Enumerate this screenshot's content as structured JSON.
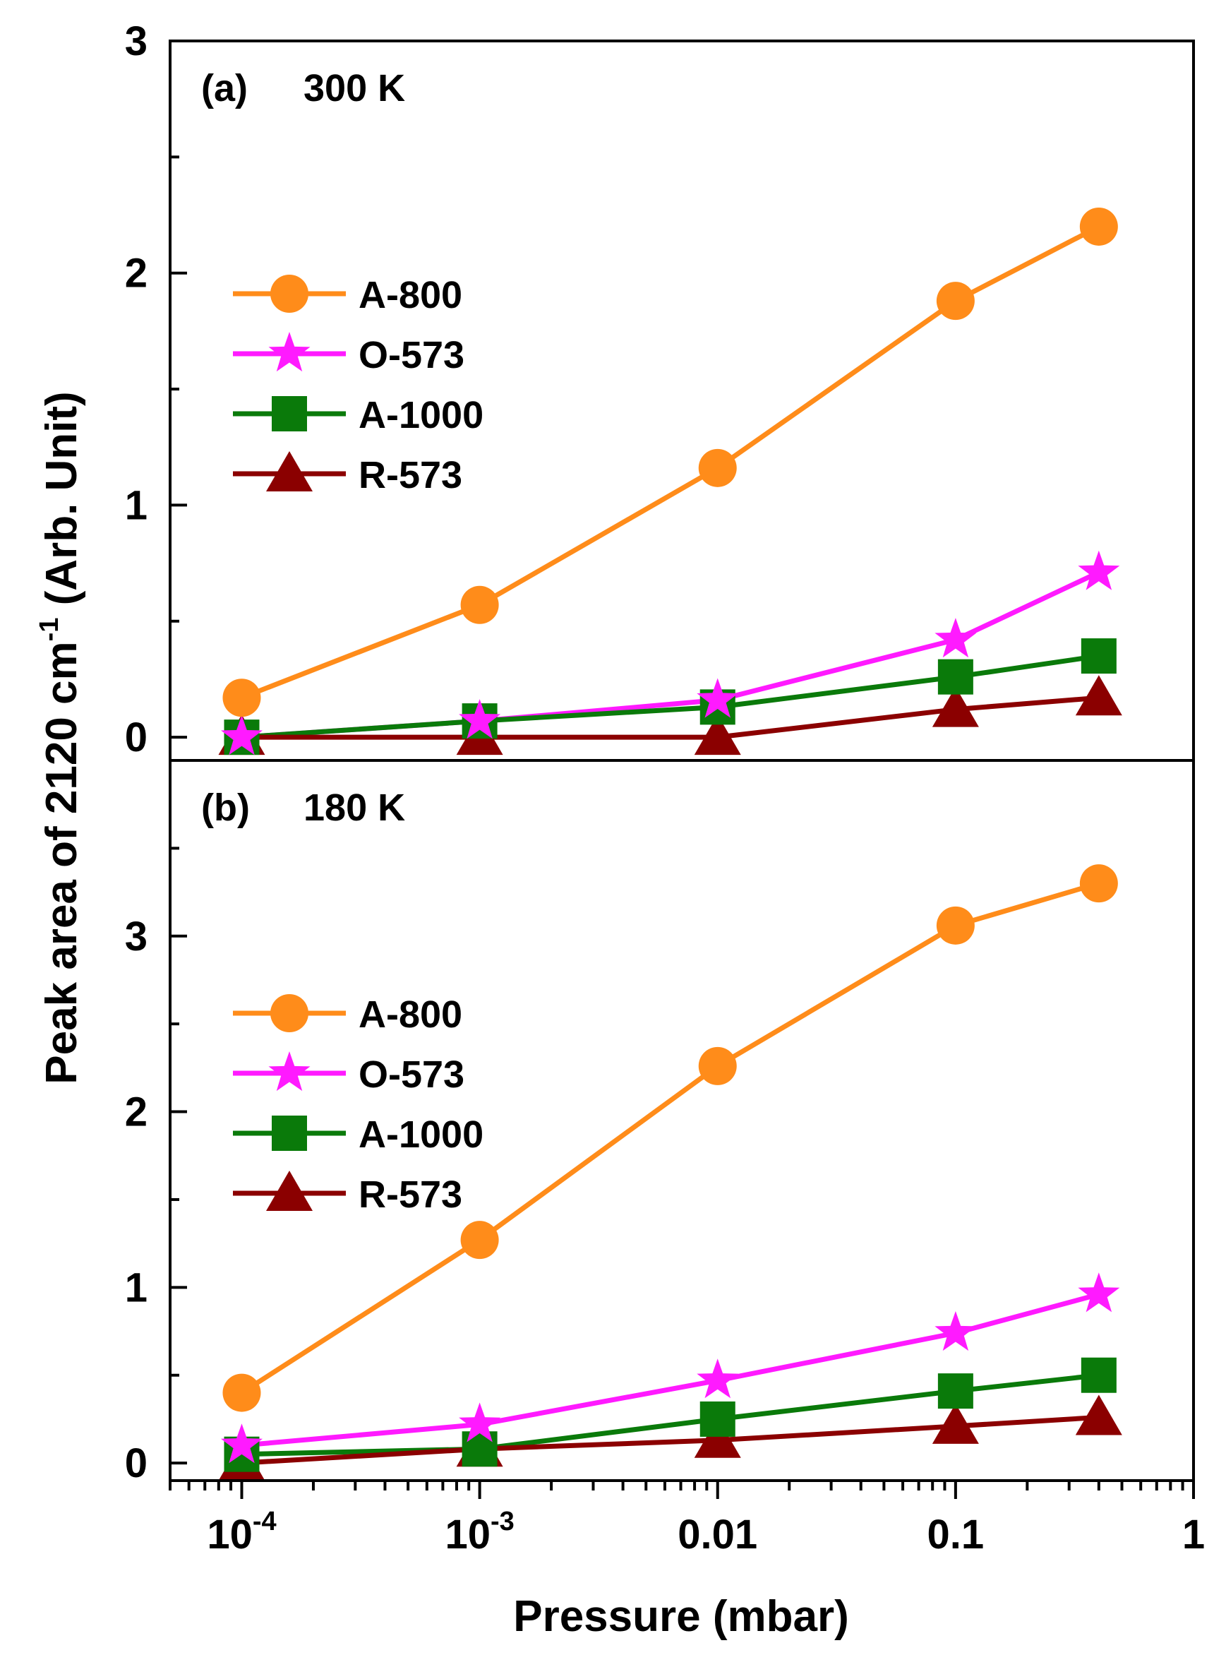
{
  "chart_data": [
    {
      "type": "line",
      "panel": "a",
      "panel_label": "(a)",
      "temperature_label": "300 K",
      "x_scale": "log",
      "xlim": [
        5e-05,
        1
      ],
      "ylim": [
        -0.1,
        3
      ],
      "yticks": [
        0,
        1,
        2,
        3
      ],
      "ytick_labels": [
        "0",
        "1",
        "2",
        "3"
      ],
      "x": [
        0.0001,
        0.001,
        0.01,
        0.1,
        0.4
      ],
      "legend_position": "center-left",
      "series": [
        {
          "name": "A-800",
          "color": "#FF8C1A",
          "marker": "circle",
          "values": [
            0.17,
            0.57,
            1.16,
            1.88,
            2.2
          ]
        },
        {
          "name": "O-573",
          "color": "#FF1AFF",
          "marker": "star",
          "values": [
            0.0,
            0.07,
            0.16,
            0.42,
            0.71
          ]
        },
        {
          "name": "A-1000",
          "color": "#0A7A0A",
          "marker": "square",
          "values": [
            0.0,
            0.07,
            0.13,
            0.26,
            0.35
          ]
        },
        {
          "name": "R-573",
          "color": "#8B0000",
          "marker": "triangle",
          "values": [
            0.0,
            0.0,
            0.0,
            0.12,
            0.17
          ]
        }
      ]
    },
    {
      "type": "line",
      "panel": "b",
      "panel_label": "(b)",
      "temperature_label": "180 K",
      "x_scale": "log",
      "xlim": [
        5e-05,
        1
      ],
      "ylim": [
        -0.1,
        4
      ],
      "yticks": [
        0,
        1,
        2,
        3
      ],
      "ytick_labels": [
        "0",
        "1",
        "2",
        "3"
      ],
      "x": [
        0.0001,
        0.001,
        0.01,
        0.1,
        0.4
      ],
      "xticks": [
        0.0001,
        0.001,
        0.01,
        0.1,
        1
      ],
      "xtick_labels": [
        {
          "base": "10",
          "exp": "-4"
        },
        {
          "base": "10",
          "exp": "-3"
        },
        {
          "base": "0.01",
          "exp": ""
        },
        {
          "base": "0.1",
          "exp": ""
        },
        {
          "base": "1",
          "exp": ""
        }
      ],
      "xlabel": "Pressure (mbar)",
      "legend_position": "center-left",
      "series": [
        {
          "name": "A-800",
          "color": "#FF8C1A",
          "marker": "circle",
          "values": [
            0.4,
            1.27,
            2.26,
            3.06,
            3.3
          ]
        },
        {
          "name": "O-573",
          "color": "#FF1AFF",
          "marker": "star",
          "values": [
            0.1,
            0.22,
            0.47,
            0.74,
            0.96
          ]
        },
        {
          "name": "A-1000",
          "color": "#0A7A0A",
          "marker": "square",
          "values": [
            0.05,
            0.08,
            0.25,
            0.41,
            0.5
          ]
        },
        {
          "name": "R-573",
          "color": "#8B0000",
          "marker": "triangle",
          "values": [
            0.0,
            0.08,
            0.13,
            0.21,
            0.26
          ]
        }
      ]
    }
  ],
  "ylabel": {
    "main": "Peak area of 2120 cm",
    "sup": "-1",
    "tail": " (Arb. Unit)"
  }
}
